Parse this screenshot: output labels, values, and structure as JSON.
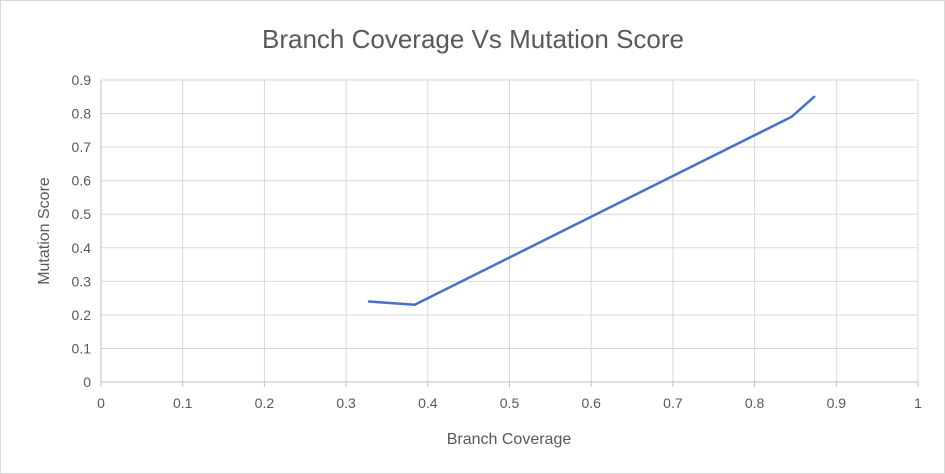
{
  "chart_data": {
    "type": "line",
    "title": "Branch Coverage Vs Mutation Score",
    "xlabel": "Branch Coverage",
    "ylabel": "Mutation Score",
    "xlim": [
      0,
      1
    ],
    "ylim": [
      0,
      0.9
    ],
    "xticks": [
      "0",
      "0.1",
      "0.2",
      "0.3",
      "0.4",
      "0.5",
      "0.6",
      "0.7",
      "0.8",
      "0.9",
      "1"
    ],
    "yticks": [
      "0",
      "0.1",
      "0.2",
      "0.3",
      "0.4",
      "0.5",
      "0.6",
      "0.7",
      "0.8",
      "0.9"
    ],
    "grid": true,
    "legend": "none",
    "series": [
      {
        "color": "#4472c4",
        "x": [
          0.328,
          0.384,
          0.845,
          0.873
        ],
        "y": [
          0.24,
          0.23,
          0.79,
          0.85
        ]
      }
    ]
  }
}
